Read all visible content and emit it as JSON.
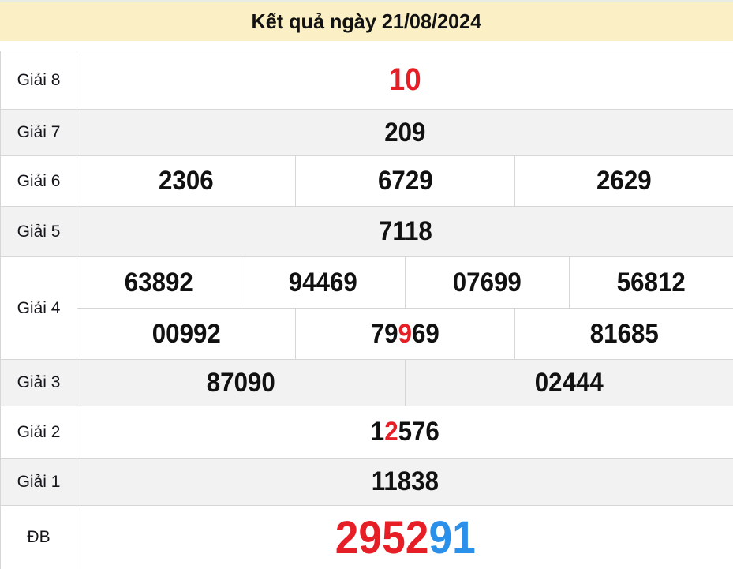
{
  "title": "Kết quả ngày 21/08/2024",
  "colors": {
    "red": "#e61e25",
    "blue": "#2b90e9",
    "header_bg": "#fbf0c5",
    "zebra_bg": "#f2f2f2",
    "border": "#d6d6d6"
  },
  "prizes": {
    "g8": {
      "label": "Giải 8",
      "cells": [
        {
          "parts": [
            {
              "text": "10",
              "color": "red"
            }
          ]
        }
      ]
    },
    "g7": {
      "label": "Giải 7",
      "cells": [
        {
          "parts": [
            {
              "text": "209",
              "color": "black"
            }
          ]
        }
      ]
    },
    "g6": {
      "label": "Giải 6",
      "cells": [
        {
          "parts": [
            {
              "text": "2306",
              "color": "black"
            }
          ]
        },
        {
          "parts": [
            {
              "text": "6729",
              "color": "black"
            }
          ]
        },
        {
          "parts": [
            {
              "text": "2629",
              "color": "black"
            }
          ]
        }
      ]
    },
    "g5": {
      "label": "Giải 5",
      "cells": [
        {
          "parts": [
            {
              "text": "7118",
              "color": "black"
            }
          ]
        }
      ]
    },
    "g4": {
      "label": "Giải 4",
      "row1": [
        {
          "parts": [
            {
              "text": "63892",
              "color": "black"
            }
          ]
        },
        {
          "parts": [
            {
              "text": "94469",
              "color": "black"
            }
          ]
        },
        {
          "parts": [
            {
              "text": "07699",
              "color": "black"
            }
          ]
        },
        {
          "parts": [
            {
              "text": "56812",
              "color": "black"
            }
          ]
        }
      ],
      "row2": [
        {
          "parts": [
            {
              "text": "00992",
              "color": "black"
            }
          ]
        },
        {
          "parts": [
            {
              "text": "79",
              "color": "black"
            },
            {
              "text": "9",
              "color": "red"
            },
            {
              "text": "69",
              "color": "black"
            }
          ]
        },
        {
          "parts": [
            {
              "text": "81685",
              "color": "black"
            }
          ]
        }
      ]
    },
    "g3": {
      "label": "Giải 3",
      "cells": [
        {
          "parts": [
            {
              "text": "87090",
              "color": "black"
            }
          ]
        },
        {
          "parts": [
            {
              "text": "02444",
              "color": "black"
            }
          ]
        }
      ]
    },
    "g2": {
      "label": "Giải 2",
      "cells": [
        {
          "parts": [
            {
              "text": "1",
              "color": "black"
            },
            {
              "text": "2",
              "color": "red"
            },
            {
              "text": "576",
              "color": "black"
            }
          ]
        }
      ]
    },
    "g1": {
      "label": "Giải 1",
      "cells": [
        {
          "parts": [
            {
              "text": "11838",
              "color": "black"
            }
          ]
        }
      ]
    },
    "db": {
      "label": "ĐB",
      "cells": [
        {
          "parts": [
            {
              "text": "2952",
              "color": "red"
            },
            {
              "text": "91",
              "color": "blue"
            }
          ]
        }
      ]
    }
  }
}
